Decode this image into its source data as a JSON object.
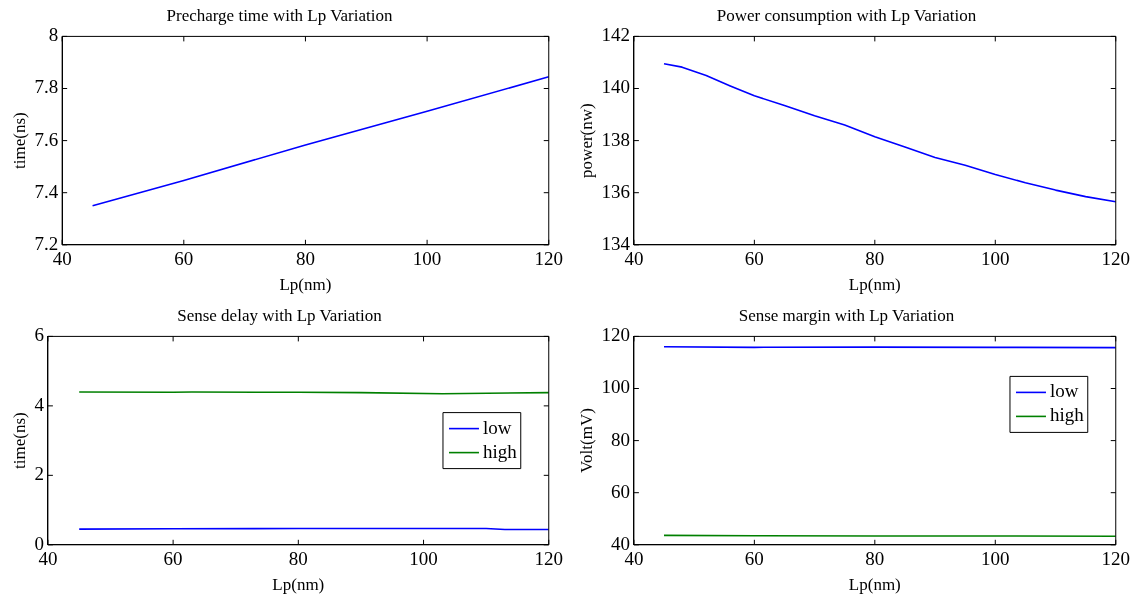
{
  "chart_data": [
    {
      "type": "line",
      "title": "Precharge time with Lp Variation",
      "xlabel": "Lp(nm)",
      "ylabel": "time(ns)",
      "xlim": [
        40,
        120
      ],
      "xticks": [
        40,
        60,
        80,
        100,
        120
      ],
      "ylim": [
        7.2,
        8
      ],
      "yticks": [
        7.2,
        7.4,
        7.6,
        7.8,
        8
      ],
      "grid": false,
      "legend": false,
      "series": [
        {
          "color": "#0000ff",
          "x": [
            45,
            60,
            80,
            100,
            120
          ],
          "values": [
            7.35,
            7.447,
            7.583,
            7.713,
            7.845
          ]
        }
      ]
    },
    {
      "type": "line",
      "title": "Power consumption with Lp Variation",
      "xlabel": "Lp(nm)",
      "ylabel": "power(nw)",
      "xlim": [
        40,
        120
      ],
      "xticks": [
        40,
        60,
        80,
        100,
        120
      ],
      "ylim": [
        134,
        142
      ],
      "yticks": [
        134,
        136,
        138,
        140,
        142
      ],
      "grid": false,
      "legend": false,
      "series": [
        {
          "color": "#0000ff",
          "x": [
            45,
            48,
            52,
            56,
            60,
            65,
            70,
            75,
            80,
            85,
            90,
            95,
            100,
            105,
            110,
            115,
            120
          ],
          "values": [
            140.95,
            140.82,
            140.5,
            140.1,
            139.72,
            139.35,
            138.95,
            138.6,
            138.15,
            137.75,
            137.35,
            137.05,
            136.7,
            136.38,
            136.1,
            135.85,
            135.65
          ]
        }
      ]
    },
    {
      "type": "line",
      "title": "Sense delay with Lp Variation",
      "xlabel": "Lp(nm)",
      "ylabel": "time(ns)",
      "xlim": [
        40,
        120
      ],
      "xticks": [
        40,
        60,
        80,
        100,
        120
      ],
      "ylim": [
        0,
        6
      ],
      "yticks": [
        0,
        2,
        4,
        6
      ],
      "grid": false,
      "legend": "right",
      "series": [
        {
          "name": "low",
          "color": "#0000ff",
          "x": [
            45,
            60,
            80,
            100,
            110,
            113,
            120
          ],
          "values": [
            0.45,
            0.46,
            0.47,
            0.47,
            0.47,
            0.44,
            0.44
          ]
        },
        {
          "name": "high",
          "color": "#008000",
          "x": [
            45,
            60,
            63,
            80,
            90,
            103,
            120
          ],
          "values": [
            4.4,
            4.39,
            4.4,
            4.39,
            4.38,
            4.35,
            4.38
          ]
        }
      ]
    },
    {
      "type": "line",
      "title": "Sense margin with Lp Variation",
      "xlabel": "Lp(nm)",
      "ylabel": "Volt(mV)",
      "xlim": [
        40,
        120
      ],
      "xticks": [
        40,
        60,
        80,
        100,
        120
      ],
      "ylim": [
        40,
        120
      ],
      "yticks": [
        40,
        60,
        80,
        100,
        120
      ],
      "grid": false,
      "legend": "top right",
      "series": [
        {
          "name": "low",
          "color": "#0000ff",
          "x": [
            45,
            60,
            80,
            100,
            120
          ],
          "values": [
            116,
            115.8,
            115.9,
            115.8,
            115.7
          ]
        },
        {
          "name": "high",
          "color": "#008000",
          "x": [
            45,
            60,
            80,
            100,
            120
          ],
          "values": [
            43.6,
            43.5,
            43.4,
            43.4,
            43.3
          ]
        }
      ]
    }
  ]
}
